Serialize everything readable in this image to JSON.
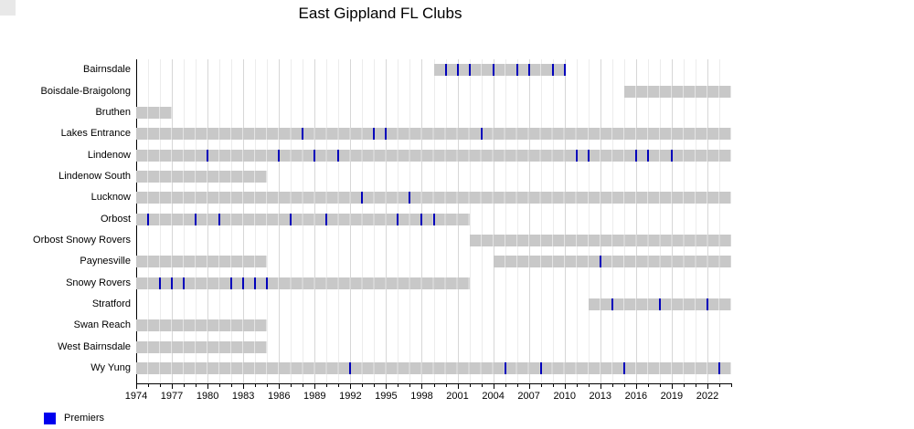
{
  "colors": {
    "bar": "#c8c8c8",
    "premier_mark": "#0000bb",
    "legend_swatch": "#0000ee",
    "grid_minor": "#ececec",
    "grid_major": "#d7d7d7",
    "axis": "#000000",
    "corner_artifact": "#e8e8e8"
  },
  "chart_data": {
    "type": "bar",
    "variant": "horizontal-gantt-timeline",
    "title": "East Gippland FL Clubs",
    "grid": true,
    "legend_position": "bottom-left",
    "legend": [
      {
        "label": "Premiers",
        "color": "#0000ee"
      }
    ],
    "x_axis": {
      "min": 1974,
      "max": 2024,
      "minor_tick_step": 1,
      "labeled_ticks": [
        1974,
        1977,
        1980,
        1983,
        1986,
        1989,
        1992,
        1995,
        1998,
        2001,
        2004,
        2007,
        2010,
        2013,
        2016,
        2019,
        2022
      ]
    },
    "clubs": [
      {
        "name": "Bairnsdale",
        "active_periods": [
          [
            1999,
            2010
          ]
        ],
        "premiers": [
          2000,
          2001,
          2002,
          2004,
          2006,
          2007,
          2009,
          2010
        ]
      },
      {
        "name": "Boisdale-Braigolong",
        "active_periods": [
          [
            2015,
            2024
          ]
        ],
        "premiers": []
      },
      {
        "name": "Bruthen",
        "active_periods": [
          [
            1974,
            1977
          ]
        ],
        "premiers": []
      },
      {
        "name": "Lakes Entrance",
        "active_periods": [
          [
            1974,
            2024
          ]
        ],
        "premiers": [
          1988,
          1994,
          1995,
          2003
        ]
      },
      {
        "name": "Lindenow",
        "active_periods": [
          [
            1974,
            2024
          ]
        ],
        "premiers": [
          1980,
          1986,
          1989,
          1991,
          2011,
          2012,
          2016,
          2017,
          2019
        ]
      },
      {
        "name": "Lindenow South",
        "active_periods": [
          [
            1974,
            1985
          ]
        ],
        "premiers": []
      },
      {
        "name": "Lucknow",
        "active_periods": [
          [
            1974,
            2024
          ]
        ],
        "premiers": [
          1993,
          1997
        ]
      },
      {
        "name": "Orbost",
        "active_periods": [
          [
            1974,
            2002
          ]
        ],
        "premiers": [
          1975,
          1979,
          1981,
          1987,
          1990,
          1996,
          1998,
          1999
        ]
      },
      {
        "name": "Orbost Snowy Rovers",
        "active_periods": [
          [
            2002,
            2024
          ]
        ],
        "premiers": []
      },
      {
        "name": "Paynesville",
        "active_periods": [
          [
            1974,
            1985
          ],
          [
            2004,
            2024
          ]
        ],
        "premiers": [
          2013
        ]
      },
      {
        "name": "Snowy Rovers",
        "active_periods": [
          [
            1974,
            2002
          ]
        ],
        "premiers": [
          1976,
          1977,
          1978,
          1982,
          1983,
          1984,
          1985
        ]
      },
      {
        "name": "Stratford",
        "active_periods": [
          [
            2012,
            2024
          ]
        ],
        "premiers": [
          2014,
          2018,
          2022
        ]
      },
      {
        "name": "Swan Reach",
        "active_periods": [
          [
            1974,
            1985
          ]
        ],
        "premiers": []
      },
      {
        "name": "West Bairnsdale",
        "active_periods": [
          [
            1974,
            1985
          ]
        ],
        "premiers": []
      },
      {
        "name": "Wy Yung",
        "active_periods": [
          [
            1974,
            2024
          ]
        ],
        "premiers": [
          1992,
          2005,
          2008,
          2015,
          2023
        ]
      }
    ]
  }
}
